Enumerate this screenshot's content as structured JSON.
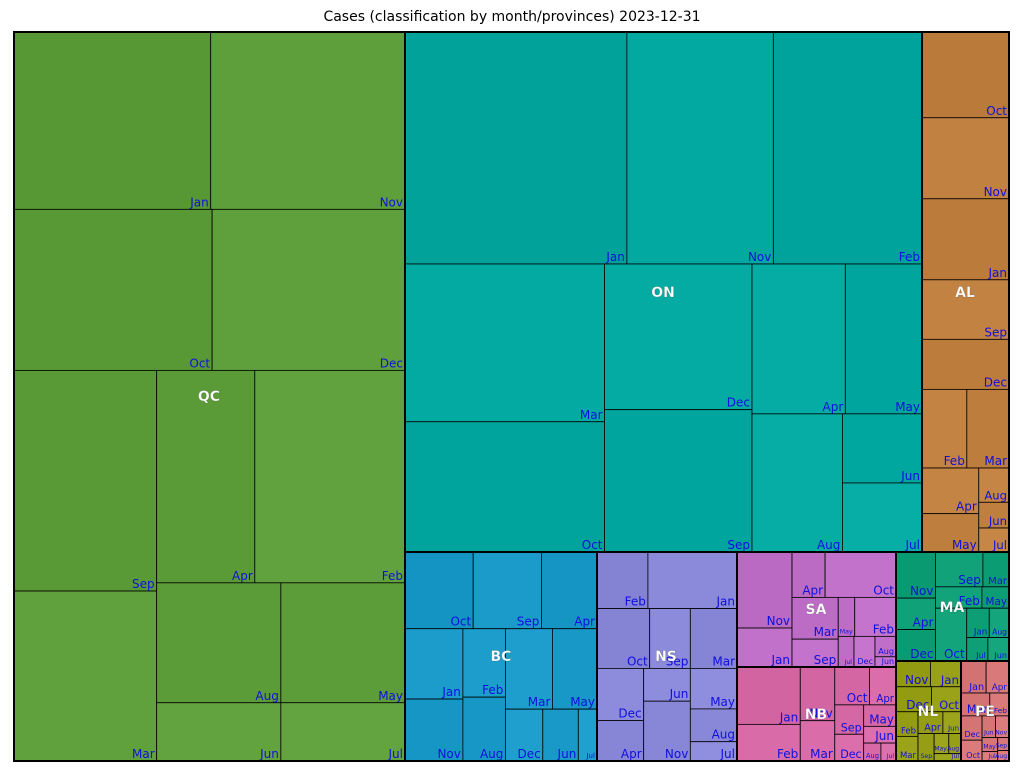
{
  "chart_data": {
    "type": "treemap",
    "title": "Cases (classification by month/provinces)  2023-12-31",
    "groups": [
      {
        "name": "QC",
        "color": "#5e9e3a",
        "cells": [
          {
            "label": "Jan",
            "value": 4100
          },
          {
            "label": "Nov",
            "value": 4050
          },
          {
            "label": "Oct",
            "value": 3750
          },
          {
            "label": "Dec",
            "value": 3650
          },
          {
            "label": "Sep",
            "value": 3700
          },
          {
            "label": "Mar",
            "value": 2850
          },
          {
            "label": "Apr",
            "value": 2450
          },
          {
            "label": "Feb",
            "value": 3750
          },
          {
            "label": "Aug",
            "value": 1750
          },
          {
            "label": "Jun",
            "value": 850
          },
          {
            "label": "May",
            "value": 1750
          },
          {
            "label": "Jul",
            "value": 850
          }
        ]
      },
      {
        "name": "ON",
        "color": "#00a8a0",
        "cells": [
          {
            "label": "Jan",
            "value": 5150
          },
          {
            "label": "Nov",
            "value": 3400
          },
          {
            "label": "Feb",
            "value": 3450
          },
          {
            "label": "Mar",
            "value": 3150
          },
          {
            "label": "Oct",
            "value": 2600
          },
          {
            "label": "Dec",
            "value": 2150
          },
          {
            "label": "Sep",
            "value": 2100
          },
          {
            "label": "Apr",
            "value": 1400
          },
          {
            "label": "May",
            "value": 1150
          },
          {
            "label": "Aug",
            "value": 1250
          },
          {
            "label": "Jun",
            "value": 550
          },
          {
            "label": "Jul",
            "value": 550
          }
        ]
      },
      {
        "name": "AL",
        "color": "#c08040",
        "cells": [
          {
            "label": "Oct",
            "value": 720
          },
          {
            "label": "Nov",
            "value": 680
          },
          {
            "label": "Jan",
            "value": 680
          },
          {
            "label": "Sep",
            "value": 500
          },
          {
            "label": "Dec",
            "value": 420
          },
          {
            "label": "Feb",
            "value": 340
          },
          {
            "label": "Mar",
            "value": 320
          },
          {
            "label": "Apr",
            "value": 250
          },
          {
            "label": "May",
            "value": 210
          },
          {
            "label": "Aug",
            "value": 100
          },
          {
            "label": "Jun",
            "value": 75
          },
          {
            "label": "Jul",
            "value": 70
          }
        ]
      },
      {
        "name": "BC",
        "color": "#1a9ac8",
        "cells": [
          {
            "label": "Oct",
            "value": 540
          },
          {
            "label": "Sep",
            "value": 540
          },
          {
            "label": "Apr",
            "value": 440
          },
          {
            "label": "Jan",
            "value": 420
          },
          {
            "label": "Nov",
            "value": 370
          },
          {
            "label": "Feb",
            "value": 300
          },
          {
            "label": "Aug",
            "value": 280
          },
          {
            "label": "Mar",
            "value": 390
          },
          {
            "label": "May",
            "value": 370
          },
          {
            "label": "Dec",
            "value": 200
          },
          {
            "label": "Jun",
            "value": 190
          },
          {
            "label": "Jul",
            "value": 100
          }
        ]
      },
      {
        "name": "NS",
        "color": "#8a88d8",
        "cells": [
          {
            "label": "Feb",
            "value": 320
          },
          {
            "label": "Jan",
            "value": 560
          },
          {
            "label": "Oct",
            "value": 350
          },
          {
            "label": "Sep",
            "value": 270
          },
          {
            "label": "Mar",
            "value": 310
          },
          {
            "label": "Dec",
            "value": 270
          },
          {
            "label": "Apr",
            "value": 210
          },
          {
            "label": "Jun",
            "value": 170
          },
          {
            "label": "Nov",
            "value": 310
          },
          {
            "label": "May",
            "value": 210
          },
          {
            "label": "Aug",
            "value": 170
          },
          {
            "label": "Jul",
            "value": 100
          }
        ]
      },
      {
        "name": "SA",
        "color": "#c070c8",
        "cells": [
          {
            "label": "Nov",
            "value": 390
          },
          {
            "label": "Jan",
            "value": 200
          },
          {
            "label": "Apr",
            "value": 140
          },
          {
            "label": "Oct",
            "value": 300
          },
          {
            "label": "Mar",
            "value": 180
          },
          {
            "label": "Sep",
            "value": 120
          },
          {
            "label": "May",
            "value": 60
          },
          {
            "label": "Feb",
            "value": 150
          },
          {
            "label": "Jul",
            "value": 45
          },
          {
            "label": "Dec",
            "value": 60
          },
          {
            "label": "Aug",
            "value": 40
          },
          {
            "label": "Jun",
            "value": 20
          }
        ]
      },
      {
        "name": "NB",
        "color": "#d86aa8",
        "cells": [
          {
            "label": "Jan",
            "value": 470
          },
          {
            "label": "Feb",
            "value": 300
          },
          {
            "label": "Nov",
            "value": 240
          },
          {
            "label": "Mar",
            "value": 180
          },
          {
            "label": "Oct",
            "value": 170
          },
          {
            "label": "Apr",
            "value": 130
          },
          {
            "label": "Sep",
            "value": 110
          },
          {
            "label": "Dec",
            "value": 100
          },
          {
            "label": "May",
            "value": 90
          },
          {
            "label": "Jun",
            "value": 70
          },
          {
            "label": "Aug",
            "value": 40
          },
          {
            "label": "Jul",
            "value": 35
          }
        ]
      },
      {
        "name": "MA",
        "color": "#10a078",
        "cells": [
          {
            "label": "Nov",
            "value": 220
          },
          {
            "label": "Apr",
            "value": 150
          },
          {
            "label": "Dec",
            "value": 150
          },
          {
            "label": "Sep",
            "value": 200
          },
          {
            "label": "Mar",
            "value": 110
          },
          {
            "label": "Feb",
            "value": 120
          },
          {
            "label": "May",
            "value": 70
          },
          {
            "label": "Oct",
            "value": 200
          },
          {
            "label": "Jan",
            "value": 80
          },
          {
            "label": "Aug",
            "value": 70
          },
          {
            "label": "Jul",
            "value": 60
          },
          {
            "label": "Jun",
            "value": 60
          }
        ]
      },
      {
        "name": "NL",
        "color": "#98a018",
        "cells": [
          {
            "label": "Nov",
            "value": 90
          },
          {
            "label": "Jan",
            "value": 80
          },
          {
            "label": "Dec",
            "value": 90
          },
          {
            "label": "Oct",
            "value": 75
          },
          {
            "label": "Feb",
            "value": 55
          },
          {
            "label": "Mar",
            "value": 55
          },
          {
            "label": "Apr",
            "value": 55
          },
          {
            "label": "Jun",
            "value": 40
          },
          {
            "label": "Sep",
            "value": 45
          },
          {
            "label": "May",
            "value": 30
          },
          {
            "label": "Aug",
            "value": 25
          },
          {
            "label": "Jul",
            "value": 20
          }
        ]
      },
      {
        "name": "PE",
        "color": "#d87878",
        "cells": [
          {
            "label": "Jan",
            "value": 55
          },
          {
            "label": "Apr",
            "value": 50
          },
          {
            "label": "Mar",
            "value": 45
          },
          {
            "label": "Feb",
            "value": 30
          },
          {
            "label": "Dec",
            "value": 35
          },
          {
            "label": "Oct",
            "value": 30
          },
          {
            "label": "Jun",
            "value": 20
          },
          {
            "label": "Nov",
            "value": 20
          },
          {
            "label": "May",
            "value": 15
          },
          {
            "label": "Jul",
            "value": 10
          },
          {
            "label": "Sep",
            "value": 10
          },
          {
            "label": "Aug",
            "value": 8
          }
        ]
      }
    ]
  }
}
